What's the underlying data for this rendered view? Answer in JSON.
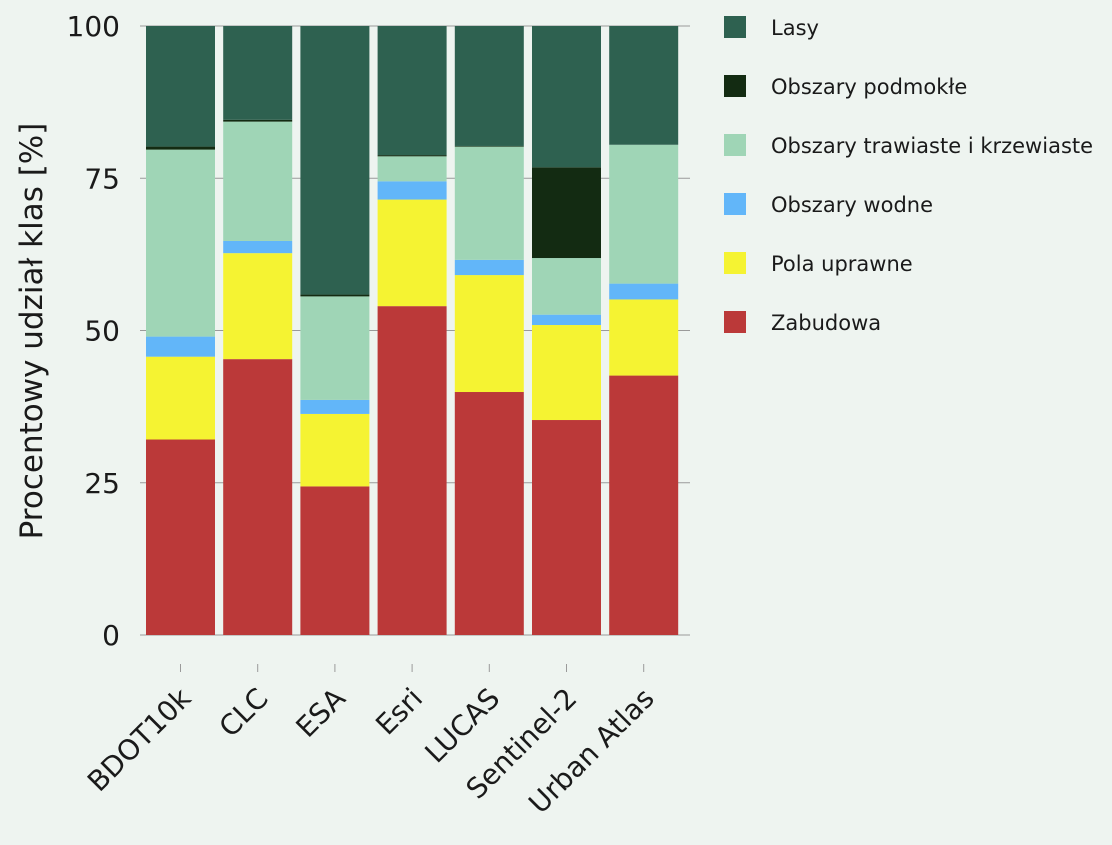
{
  "chart_data": {
    "type": "bar",
    "stacked": true,
    "categories": [
      "BDOT10k",
      "CLC",
      "ESA",
      "Esri",
      "LUCAS",
      "Sentinel-2",
      "Urban Atlas"
    ],
    "ylabel": "Procentowy udział klas [%]",
    "xlabel": "",
    "ylim": [
      0,
      100
    ],
    "yticks": [
      "0",
      "25",
      "50",
      "75",
      "100"
    ],
    "grid": true,
    "legend_position": "right",
    "series": [
      {
        "name": "Zabudowa",
        "color": "#bb3939",
        "values": [
          32.1,
          45.3,
          24.4,
          54.0,
          39.9,
          35.3,
          42.6
        ]
      },
      {
        "name": "Pola uprawne",
        "color": "#f5f332",
        "values": [
          13.6,
          17.4,
          11.9,
          17.5,
          19.2,
          15.6,
          12.5
        ]
      },
      {
        "name": "Obszary wodne",
        "color": "#62b6f9",
        "values": [
          3.3,
          2.0,
          2.3,
          3.0,
          2.5,
          1.7,
          2.6
        ]
      },
      {
        "name": "Obszary trawiaste i krzewiaste",
        "color": "#9fd5b6",
        "values": [
          30.7,
          19.6,
          17.0,
          4.1,
          18.6,
          9.3,
          22.8
        ]
      },
      {
        "name": "Obszary podmokłe",
        "color": "#132b12",
        "values": [
          0.5,
          0.3,
          0.3,
          0.2,
          0.1,
          14.9,
          0.0
        ]
      },
      {
        "name": "Lasy",
        "color": "#2e6150",
        "values": [
          19.8,
          15.4,
          44.1,
          21.2,
          19.7,
          23.2,
          19.5
        ]
      }
    ],
    "legend_order": [
      "Lasy",
      "Obszary podmokłe",
      "Obszary trawiaste i krzewiaste",
      "Obszary wodne",
      "Pola uprawne",
      "Zabudowa"
    ]
  }
}
